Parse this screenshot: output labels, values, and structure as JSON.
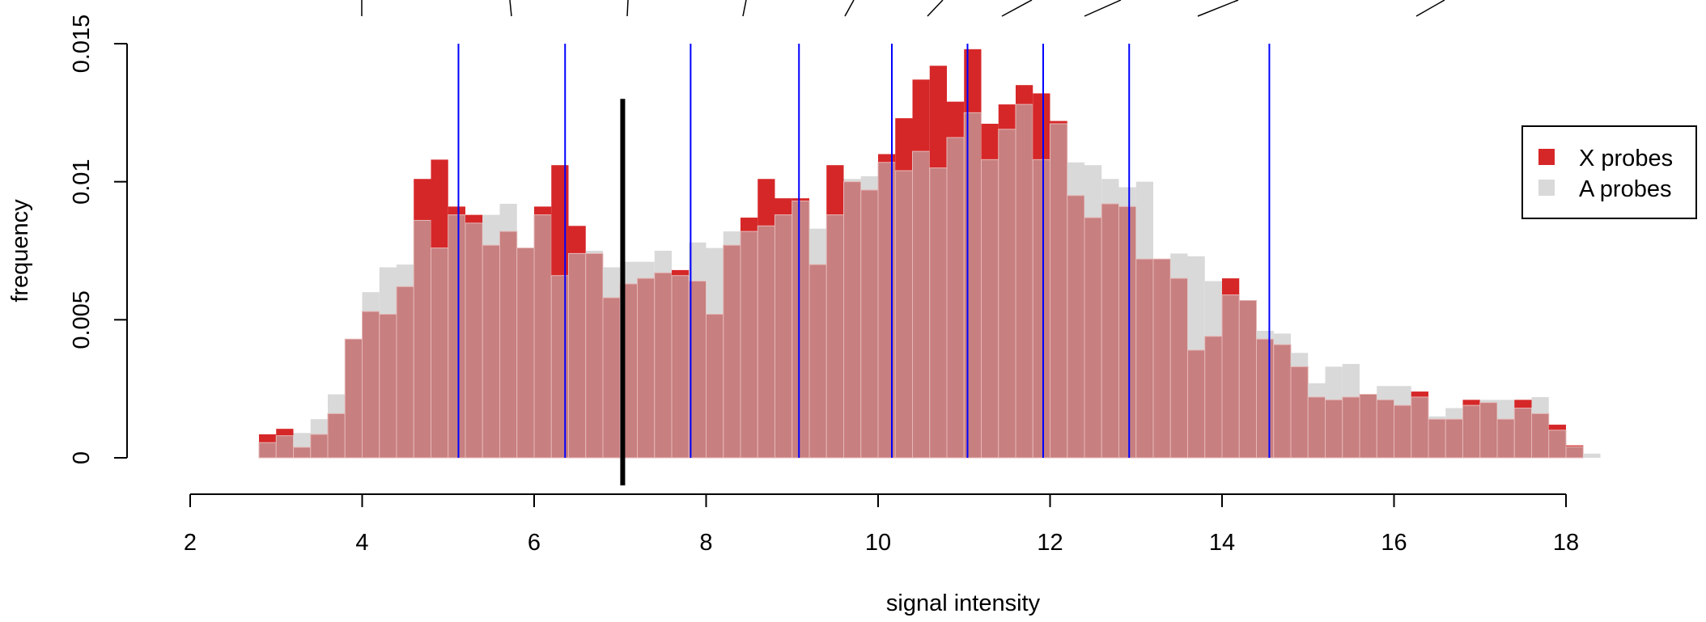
{
  "chart_data": {
    "type": "bar",
    "xlabel": "signal intensity",
    "ylabel": "frequency",
    "xlim": [
      2,
      18
    ],
    "ylim": [
      0,
      0.015
    ],
    "x_ticks": [
      "2",
      "4",
      "6",
      "8",
      "10",
      "12",
      "14",
      "16",
      "18"
    ],
    "y_ticks": [
      "0",
      "0.005",
      "0.01",
      "0.015"
    ],
    "bin_width": 0.2,
    "bin_start": 2.8,
    "legend_position": "right",
    "series": [
      {
        "name": "X probes",
        "color": "#d62728",
        "values": [
          0.00085,
          0.00105,
          0.00038,
          0.00085,
          0.0016,
          0.0043,
          0.0053,
          0.0052,
          0.0062,
          0.0101,
          0.0108,
          0.0091,
          0.0088,
          0.0077,
          0.0082,
          0.0076,
          0.0091,
          0.0106,
          0.0084,
          0.0074,
          0.0058,
          0.0063,
          0.0065,
          0.0067,
          0.0068,
          0.0064,
          0.0052,
          0.0077,
          0.0087,
          0.0101,
          0.0094,
          0.0094,
          0.007,
          0.0106,
          0.01,
          0.0097,
          0.011,
          0.0123,
          0.0137,
          0.0142,
          0.0129,
          0.0148,
          0.0121,
          0.0128,
          0.0135,
          0.0132,
          0.0122,
          0.0095,
          0.0087,
          0.0092,
          0.0091,
          0.0072,
          0.0072,
          0.0065,
          0.0039,
          0.0044,
          0.0065,
          0.0057,
          0.0043,
          0.0041,
          0.0033,
          0.0022,
          0.0021,
          0.0022,
          0.0023,
          0.0021,
          0.0019,
          0.0024,
          0.0014,
          0.0014,
          0.0021,
          0.002,
          0.0014,
          0.0021,
          0.0016,
          0.0012,
          0.00045,
          0
        ]
      },
      {
        "name": "A probes",
        "color": "#d9d9d9",
        "values": [
          0.00055,
          0.0008,
          0.0009,
          0.0014,
          0.0023,
          0.0043,
          0.006,
          0.0069,
          0.007,
          0.0086,
          0.0076,
          0.0088,
          0.0085,
          0.0088,
          0.0092,
          0.0076,
          0.0088,
          0.0066,
          0.0074,
          0.0075,
          0.0069,
          0.0071,
          0.0071,
          0.0075,
          0.0066,
          0.0078,
          0.0076,
          0.0082,
          0.0082,
          0.0084,
          0.0088,
          0.0093,
          0.0083,
          0.0088,
          0.0101,
          0.0102,
          0.0107,
          0.0104,
          0.0111,
          0.0105,
          0.0116,
          0.0125,
          0.0108,
          0.0119,
          0.0128,
          0.0108,
          0.0121,
          0.0107,
          0.0106,
          0.0101,
          0.0098,
          0.01,
          0.0072,
          0.0074,
          0.0073,
          0.0064,
          0.0059,
          0.0057,
          0.0046,
          0.0045,
          0.0038,
          0.0027,
          0.0033,
          0.0034,
          0.0023,
          0.0026,
          0.0026,
          0.0022,
          0.0015,
          0.0018,
          0.0019,
          0.0021,
          0.0021,
          0.0018,
          0.0022,
          0.001,
          0.0004,
          0.00015
        ]
      }
    ],
    "overlap_color": "#c87f7f",
    "vlines_blue": [
      5.12,
      6.36,
      7.82,
      9.08,
      10.16,
      11.04,
      11.92,
      12.92,
      14.55
    ],
    "vline_black": {
      "x": 7.03,
      "y_from": -0.001,
      "y_to": 0.013
    }
  }
}
